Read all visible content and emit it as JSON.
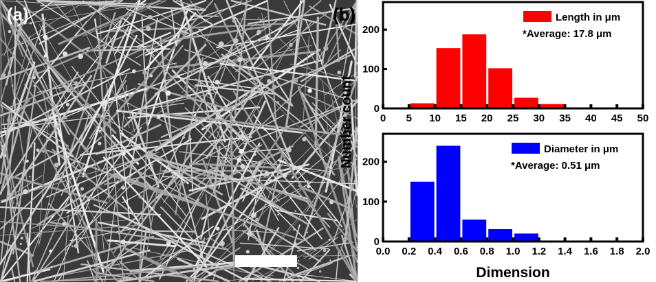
{
  "panel_a": {
    "label": "(a)"
  },
  "panel_b": {
    "label": "(b)"
  },
  "chart_data": [
    {
      "type": "bar",
      "title": "",
      "xlabel": "",
      "ylabel": "Number count",
      "x_bins": [
        [
          5,
          10
        ],
        [
          10,
          15
        ],
        [
          15,
          20
        ],
        [
          20,
          25
        ],
        [
          25,
          30
        ],
        [
          30,
          35
        ]
      ],
      "values": [
        13,
        153,
        188,
        102,
        27,
        11
      ],
      "xlim": [
        0,
        50
      ],
      "ylim": [
        0,
        270
      ],
      "xticks": [
        "0",
        "5",
        "10",
        "15",
        "20",
        "25",
        "30",
        "35",
        "40",
        "45",
        "50"
      ],
      "yticks": [
        "0",
        "100",
        "200"
      ],
      "legend": {
        "label": "Length in μm",
        "note": "*Average: 17.8 μm",
        "placement": "top-right"
      },
      "color": "#ff0000"
    },
    {
      "type": "bar",
      "title": "",
      "xlabel": "Dimension",
      "ylabel": "Number count",
      "x_bins": [
        [
          0.2,
          0.4
        ],
        [
          0.4,
          0.6
        ],
        [
          0.6,
          0.8
        ],
        [
          0.8,
          1.0
        ],
        [
          1.0,
          1.2
        ]
      ],
      "values": [
        150,
        240,
        55,
        31,
        20
      ],
      "xlim": [
        0,
        2
      ],
      "ylim": [
        0,
        270
      ],
      "xticks": [
        "0.0",
        "0.2",
        "0.4",
        "0.6",
        "0.8",
        "1.0",
        "1.2",
        "1.4",
        "1.6",
        "1.8",
        "2.0"
      ],
      "yticks": [
        "0",
        "100",
        "200"
      ],
      "legend": {
        "label": "Diameter in μm",
        "note": "*Average: 0.51 μm",
        "placement": "top-right"
      },
      "color": "#0000ff"
    }
  ],
  "shared": {
    "ylabel": "Number count",
    "xlabel": "Dimension"
  }
}
